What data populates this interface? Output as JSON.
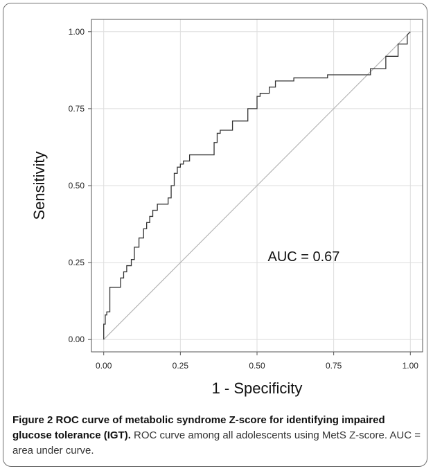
{
  "chart_data": {
    "type": "line",
    "xlabel": "1 - Specificity",
    "ylabel": "Sensitivity",
    "xlim": [
      -0.04,
      1.04
    ],
    "ylim": [
      -0.04,
      1.04
    ],
    "x_ticks": [
      "0.00",
      "0.25",
      "0.50",
      "0.75",
      "1.00"
    ],
    "y_ticks": [
      "0.00",
      "0.25",
      "0.50",
      "0.75",
      "1.00"
    ],
    "grid": true,
    "annotation": "AUC = 0.67",
    "colors": {
      "curve": "#333333",
      "reference": "#b5b5b5",
      "grid": "#dedede"
    },
    "series": [
      {
        "x": [
          0.0,
          0.0,
          0.005,
          0.005,
          0.01,
          0.01,
          0.02,
          0.02,
          0.035,
          0.035,
          0.055,
          0.055,
          0.065,
          0.065,
          0.075,
          0.075,
          0.09,
          0.09,
          0.1,
          0.1,
          0.115,
          0.115,
          0.13,
          0.13,
          0.14,
          0.14,
          0.15,
          0.15,
          0.16,
          0.16,
          0.17,
          0.17,
          0.175,
          0.175,
          0.21,
          0.21,
          0.22,
          0.22,
          0.23,
          0.23,
          0.24,
          0.24,
          0.25,
          0.25,
          0.26,
          0.26,
          0.28,
          0.28,
          0.31,
          0.31,
          0.36,
          0.36,
          0.37,
          0.37,
          0.38,
          0.38,
          0.42,
          0.42,
          0.45,
          0.45,
          0.47,
          0.47,
          0.5,
          0.5,
          0.51,
          0.51,
          0.54,
          0.54,
          0.56,
          0.56,
          0.62,
          0.62,
          0.73,
          0.73,
          0.87,
          0.87,
          0.92,
          0.92,
          0.96,
          0.96,
          0.99,
          0.99,
          1.0
        ],
        "y": [
          0.0,
          0.05,
          0.05,
          0.08,
          0.08,
          0.09,
          0.09,
          0.17,
          0.17,
          0.17,
          0.17,
          0.2,
          0.2,
          0.22,
          0.22,
          0.24,
          0.24,
          0.26,
          0.26,
          0.3,
          0.3,
          0.33,
          0.33,
          0.36,
          0.36,
          0.38,
          0.38,
          0.4,
          0.4,
          0.42,
          0.42,
          0.42,
          0.42,
          0.44,
          0.44,
          0.46,
          0.46,
          0.5,
          0.5,
          0.54,
          0.54,
          0.56,
          0.56,
          0.57,
          0.57,
          0.58,
          0.58,
          0.6,
          0.6,
          0.6,
          0.6,
          0.64,
          0.64,
          0.67,
          0.67,
          0.68,
          0.68,
          0.71,
          0.71,
          0.71,
          0.71,
          0.75,
          0.75,
          0.79,
          0.79,
          0.8,
          0.8,
          0.82,
          0.82,
          0.84,
          0.84,
          0.85,
          0.85,
          0.86,
          0.86,
          0.88,
          0.88,
          0.92,
          0.92,
          0.96,
          0.96,
          0.99,
          1.0
        ]
      }
    ],
    "reference_line": {
      "x": [
        0,
        1
      ],
      "y": [
        0,
        1
      ]
    }
  },
  "caption": {
    "label": "Figure 2 ROC curve of metabolic syndrome Z-score for identifying impaired glucose tolerance (IGT).",
    "text": " ROC curve among all adolescents using MetS Z-score. AUC = area under curve."
  }
}
